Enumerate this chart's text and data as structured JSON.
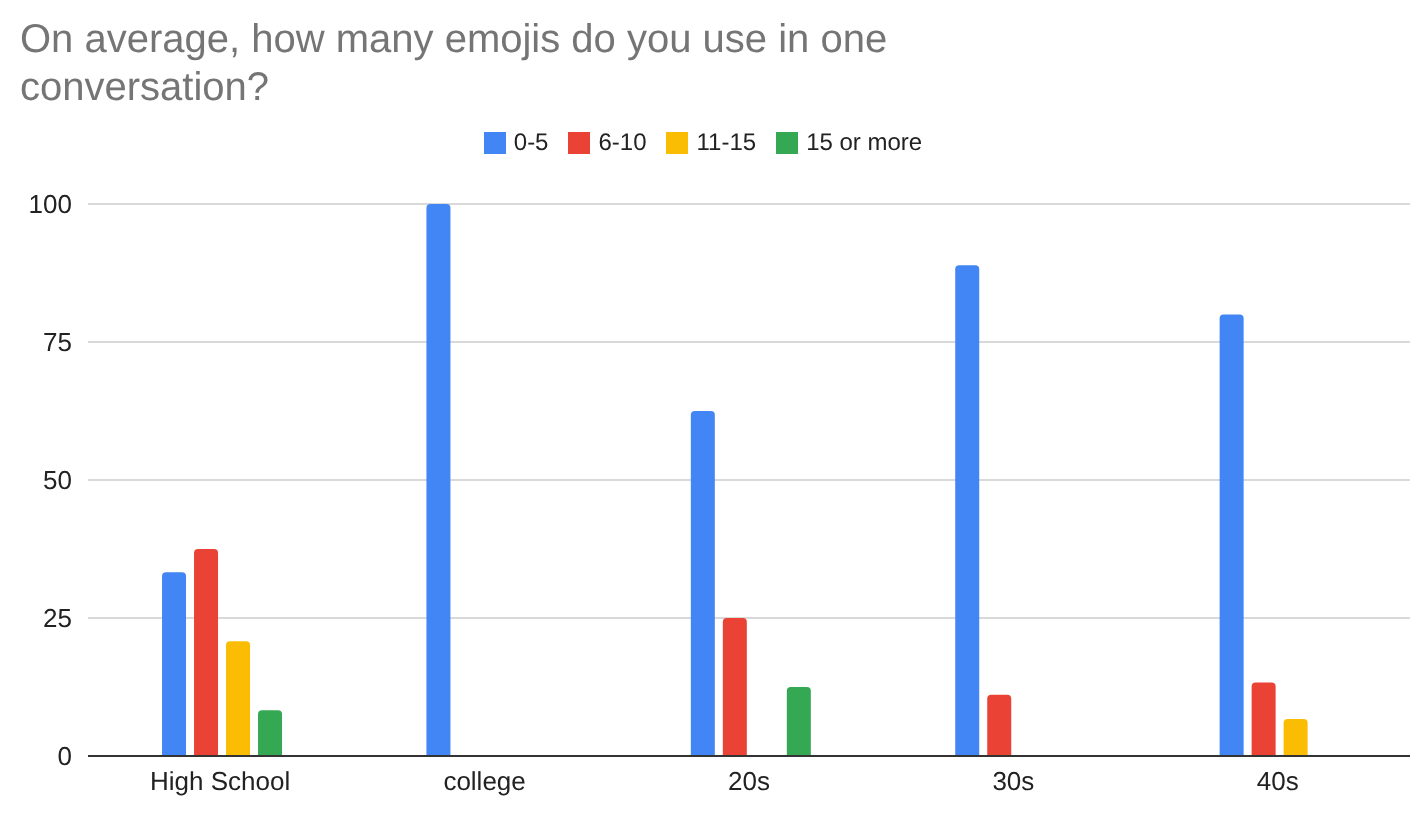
{
  "chart_data": {
    "type": "bar",
    "title": "On average, how many emojis do you use in one conversation?",
    "categories": [
      "High School",
      "college",
      "20s",
      "30s",
      "40s"
    ],
    "series": [
      {
        "name": "0-5",
        "color": "#4285f4",
        "values": [
          33.3,
          100,
          62.5,
          88.9,
          80
        ]
      },
      {
        "name": "6-10",
        "color": "#ea4335",
        "values": [
          37.5,
          null,
          25,
          11.1,
          13.3
        ]
      },
      {
        "name": "11-15",
        "color": "#fbbc04",
        "values": [
          20.8,
          null,
          null,
          null,
          6.7
        ]
      },
      {
        "name": "15 or more",
        "color": "#34a853",
        "values": [
          8.3,
          null,
          12.5,
          null,
          null
        ]
      }
    ],
    "ylim": [
      0,
      100
    ],
    "yticks": [
      0,
      25,
      50,
      75,
      100
    ],
    "grid": "y",
    "legend": "top"
  }
}
